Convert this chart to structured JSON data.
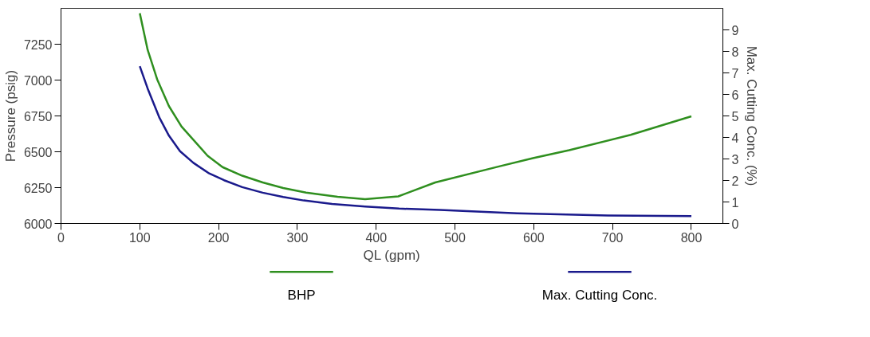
{
  "chart_data": {
    "type": "line",
    "xlabel": "QL (gpm)",
    "ylabel": "Pressure (psig)",
    "y2label": "Max. Cutting Conc. (%)",
    "xlim": [
      0,
      840
    ],
    "xticks": [
      0,
      100,
      200,
      300,
      400,
      500,
      600,
      700,
      800
    ],
    "ylim": [
      6000,
      7500
    ],
    "yticks": [
      6000,
      6250,
      6500,
      6750,
      7000,
      7250
    ],
    "y2lim": [
      0,
      10
    ],
    "y2ticks": [
      0,
      1,
      2,
      3,
      4,
      5,
      6,
      7,
      8,
      9
    ],
    "grid": false,
    "legend": "bottom",
    "marker": "none",
    "line_style": "solid",
    "series": [
      {
        "name": "BHP",
        "color": "#2f8f1f",
        "x": [
          100,
          110,
          122,
          137,
          153,
          186,
          205,
          230,
          256,
          282,
          311,
          351,
          386,
          428,
          475,
          556,
          599,
          645,
          723,
          800
        ],
        "values": [
          7466,
          7210,
          7006,
          6818,
          6676,
          6472,
          6393,
          6333,
          6286,
          6247,
          6215,
          6186,
          6170,
          6189,
          6286,
          6398,
          6456,
          6511,
          6618,
          6747
        ]
      },
      {
        "name": "Max. Cutting Conc.",
        "color": "#1a1a8c",
        "axis": "y2",
        "x": [
          100,
          110,
          125,
          137,
          151,
          168,
          187,
          207,
          230,
          256,
          282,
          308,
          344,
          386,
          429,
          481,
          579,
          694,
          800
        ],
        "values": [
          7.31,
          6.27,
          4.91,
          4.08,
          3.36,
          2.82,
          2.35,
          2.01,
          1.69,
          1.43,
          1.23,
          1.07,
          0.91,
          0.79,
          0.69,
          0.63,
          0.47,
          0.37,
          0.34
        ]
      }
    ]
  }
}
